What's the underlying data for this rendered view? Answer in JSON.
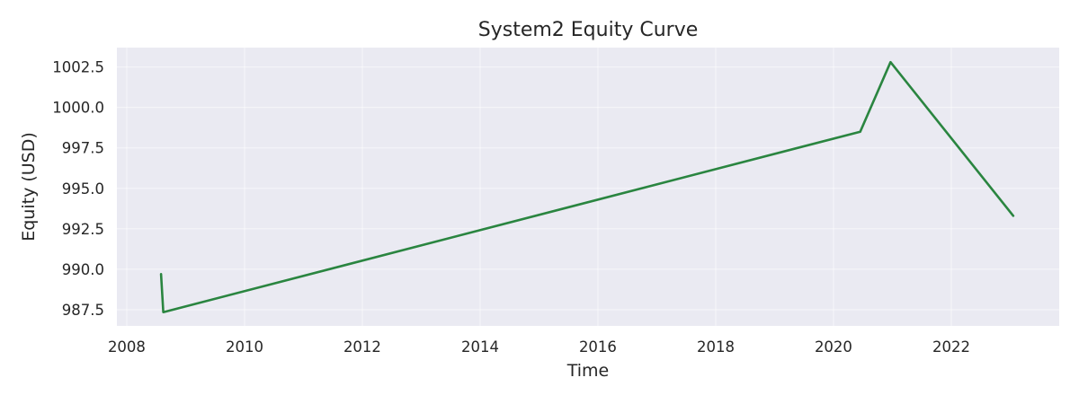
{
  "chart_data": {
    "type": "line",
    "title": "System2 Equity Curve",
    "xlabel": "Time",
    "ylabel": "Equity (USD)",
    "x_type": "date",
    "xlim": [
      "2007-11-01",
      "2023-11-01"
    ],
    "ylim": [
      986.5,
      1003.7
    ],
    "x_ticks": [
      "2008",
      "2010",
      "2012",
      "2014",
      "2016",
      "2018",
      "2020",
      "2022"
    ],
    "y_ticks": [
      "987.5",
      "990.0",
      "992.5",
      "995.0",
      "997.5",
      "1000.0",
      "1002.5"
    ],
    "grid": true,
    "legend": "none",
    "colors": {
      "line": "#2a8540",
      "plot_background": "#eaeaf2",
      "grid": "#ffffff"
    },
    "series": [
      {
        "x": [
          "2008-08-01",
          "2008-08-15",
          "2020-06-15",
          "2020-12-20",
          "2023-01-20"
        ],
        "y": [
          989.7,
          987.35,
          998.5,
          1002.8,
          993.3
        ]
      }
    ]
  }
}
